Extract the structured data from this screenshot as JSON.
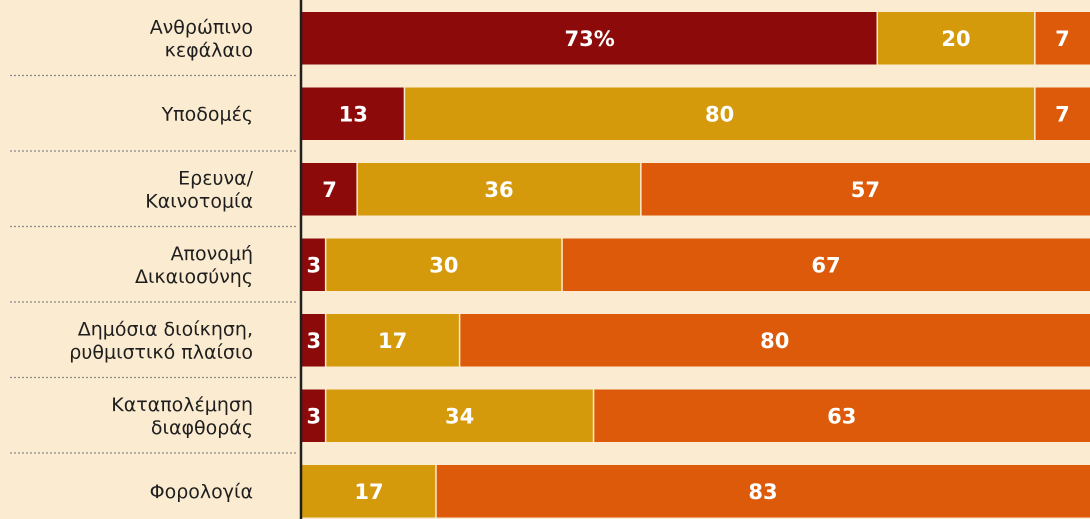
{
  "colors": {
    "background": "#fbebd0",
    "series": [
      "#8c0a0a",
      "#d49a0c",
      "#dc5a0a"
    ],
    "axis": "#1e1e1e",
    "separator": "#8a8a8a"
  },
  "chart_data": {
    "type": "bar",
    "orientation": "horizontal",
    "stacked": true,
    "categories": [
      [
        "Ανθρώπινο",
        "κεφάλαιο"
      ],
      [
        "Υποδομές"
      ],
      [
        "Ερευνα/",
        "Καινοτομία"
      ],
      [
        "Απονομή",
        "Δικαιοσύνης"
      ],
      [
        "Δημόσια διοίκηση,",
        "ρυθμιστικό πλαίσιο"
      ],
      [
        "Καταπολέμηση",
        "διαφθοράς"
      ],
      [
        "Φορολογία"
      ]
    ],
    "series": [
      {
        "values": [
          73,
          13,
          7,
          3,
          3,
          3,
          0
        ]
      },
      {
        "values": [
          20,
          80,
          36,
          30,
          17,
          34,
          17
        ]
      },
      {
        "values": [
          7,
          7,
          57,
          67,
          80,
          63,
          83
        ]
      }
    ],
    "value_labels": [
      [
        "73%",
        "20",
        "7"
      ],
      [
        "13",
        "80",
        "7"
      ],
      [
        "7",
        "36",
        "57"
      ],
      [
        "3",
        "30",
        "67"
      ],
      [
        "3",
        "17",
        "80"
      ],
      [
        "3",
        "34",
        "63"
      ],
      [
        "",
        "17",
        "83"
      ]
    ],
    "xlim": [
      0,
      100
    ],
    "legend": "none",
    "grid": false
  }
}
